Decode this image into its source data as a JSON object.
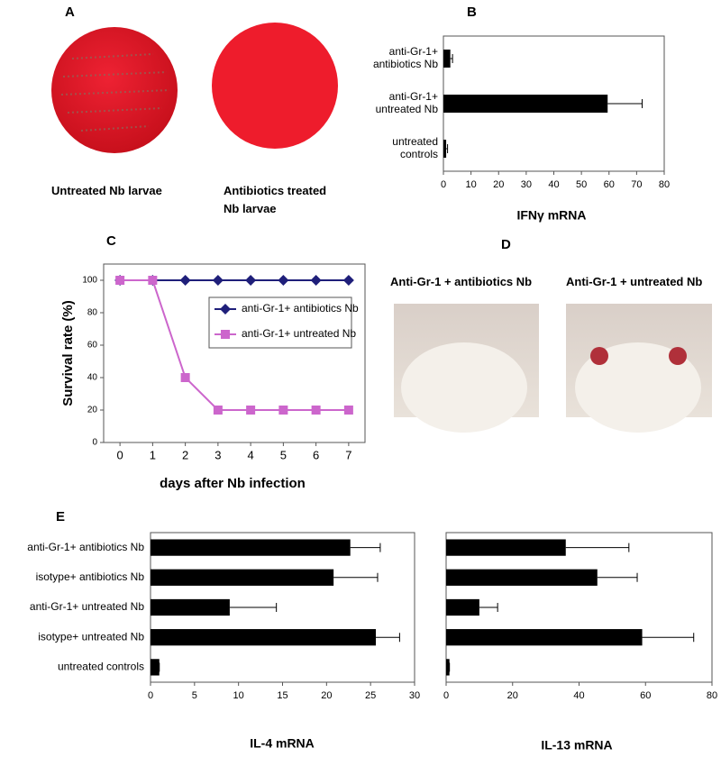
{
  "panel_labels": [
    "A",
    "B",
    "C",
    "D",
    "E"
  ],
  "photo_captions": {
    "A": [
      "Untreated Nb larvae",
      "Antibiotics treated Nb larvae"
    ],
    "D": [
      "Anti-Gr-1 + antibiotics Nb",
      "Anti-Gr-1 + untreated Nb"
    ]
  },
  "chart_data": [
    {
      "type": "bar",
      "orientation": "horizontal",
      "categories": [
        "anti-Gr-1+ antibiotics Nb",
        "anti-Gr-1+ untreated Nb",
        "untreated controls"
      ],
      "values": [
        2.5,
        59.5,
        1
      ],
      "errors": [
        0.8,
        12.5,
        0.5
      ],
      "color": "#000000",
      "xlim": [
        0,
        80
      ],
      "xticks": [
        0,
        10,
        20,
        30,
        40,
        50,
        60,
        70,
        80
      ],
      "xlabel": "IFNγ mRNA"
    },
    {
      "type": "line",
      "x": [
        0,
        1,
        2,
        3,
        4,
        5,
        6,
        7
      ],
      "series": [
        {
          "name": "anti-Gr-1+ antibiotics Nb",
          "color": "#1f1f7a",
          "marker": "diamond",
          "values": [
            100,
            100,
            100,
            100,
            100,
            100,
            100,
            100
          ]
        },
        {
          "name": "anti-Gr-1+ untreated Nb",
          "color": "#cc66cc",
          "marker": "square",
          "values": [
            100,
            100,
            40,
            20,
            20,
            20,
            20,
            20
          ]
        }
      ],
      "xlim": [
        -0.5,
        7.5
      ],
      "ylim": [
        0,
        110
      ],
      "xticks": [
        0,
        1,
        2,
        3,
        4,
        5,
        6,
        7
      ],
      "yticks": [
        0,
        20,
        40,
        60,
        80,
        100
      ],
      "xlabel": "days after Nb infection",
      "ylabel": "Survival rate (%)",
      "legend": "right"
    },
    {
      "type": "bar",
      "orientation": "horizontal",
      "categories": [
        "anti-Gr-1+ antibiotics Nb",
        "isotype+ antibiotics Nb",
        "anti-Gr-1+ untreated Nb",
        "isotype+ untreated Nb",
        "untreated controls"
      ],
      "values": [
        22.7,
        20.8,
        9.0,
        25.6,
        1.0
      ],
      "errors": [
        3.4,
        5.0,
        5.3,
        2.7,
        0
      ],
      "color": "#000000",
      "xlim": [
        0,
        30
      ],
      "xticks": [
        0,
        5,
        10,
        15,
        20,
        25,
        30
      ],
      "xlabel": "IL-4 mRNA"
    },
    {
      "type": "bar",
      "orientation": "horizontal",
      "values": [
        36,
        45.5,
        10,
        59,
        1
      ],
      "errors": [
        19,
        12,
        5.5,
        15.5,
        0
      ],
      "color": "#000000",
      "xlim": [
        0,
        80
      ],
      "xticks": [
        0,
        20,
        40,
        60,
        80
      ],
      "xlabel": "IL-13 mRNA"
    }
  ]
}
